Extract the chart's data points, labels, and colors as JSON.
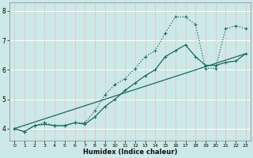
{
  "xlabel": "Humidex (Indice chaleur)",
  "bg_color": "#cce8e8",
  "line_color": "#1a6b5a",
  "xlim": [
    -0.5,
    23.5
  ],
  "ylim": [
    3.6,
    8.3
  ],
  "yticks": [
    4,
    5,
    6,
    7,
    8
  ],
  "xticks": [
    0,
    1,
    2,
    3,
    4,
    5,
    6,
    7,
    8,
    9,
    10,
    11,
    12,
    13,
    14,
    15,
    16,
    17,
    18,
    19,
    20,
    21,
    22,
    23
  ],
  "line1_x": [
    0,
    1,
    2,
    3,
    4,
    5,
    6,
    7,
    8,
    9,
    10,
    11,
    12,
    13,
    14,
    15,
    16,
    17,
    18,
    19,
    20,
    21,
    22,
    23
  ],
  "line1_y": [
    4.0,
    3.9,
    4.1,
    4.15,
    4.1,
    4.1,
    4.2,
    4.15,
    4.4,
    4.75,
    5.0,
    5.3,
    5.55,
    5.8,
    6.0,
    6.45,
    6.65,
    6.85,
    6.45,
    6.15,
    6.15,
    6.25,
    6.3,
    6.55
  ],
  "line2_x": [
    0,
    1,
    2,
    3,
    4,
    5,
    6,
    7,
    8,
    9,
    10,
    11,
    12,
    13,
    14,
    15,
    16,
    17,
    18,
    19,
    20,
    21,
    22,
    23
  ],
  "line2_y": [
    4.0,
    3.9,
    4.1,
    4.2,
    4.1,
    4.1,
    4.2,
    4.2,
    4.6,
    5.15,
    5.5,
    5.7,
    6.05,
    6.45,
    6.65,
    7.25,
    7.8,
    7.8,
    7.55,
    6.05,
    6.05,
    7.4,
    7.5,
    7.4
  ],
  "line3_x": [
    0,
    23
  ],
  "line3_y": [
    4.0,
    6.55
  ]
}
